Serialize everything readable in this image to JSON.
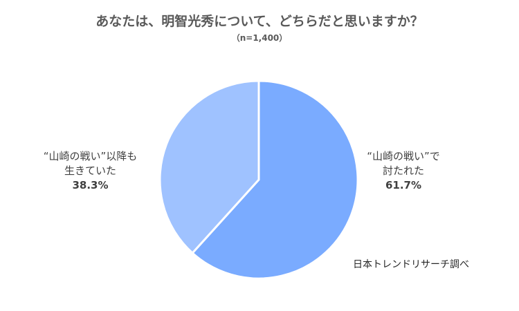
{
  "chart_data": {
    "type": "pie",
    "title": "あなたは、明智光秀について、どちらだと思いますか？",
    "subtitle": "（n=1,400）",
    "slices": [
      {
        "label_lines": [
          "“山崎の戦い”で",
          "討たれた"
        ],
        "value": 61.7,
        "value_label": "61.7%",
        "color": "#7aabff"
      },
      {
        "label_lines": [
          "“山崎の戦い”以降も",
          "生きていた"
        ],
        "value": 38.3,
        "value_label": "38.3%",
        "color": "#9fc2ff"
      }
    ]
  },
  "source": "日本トレンドリサーチ調べ"
}
